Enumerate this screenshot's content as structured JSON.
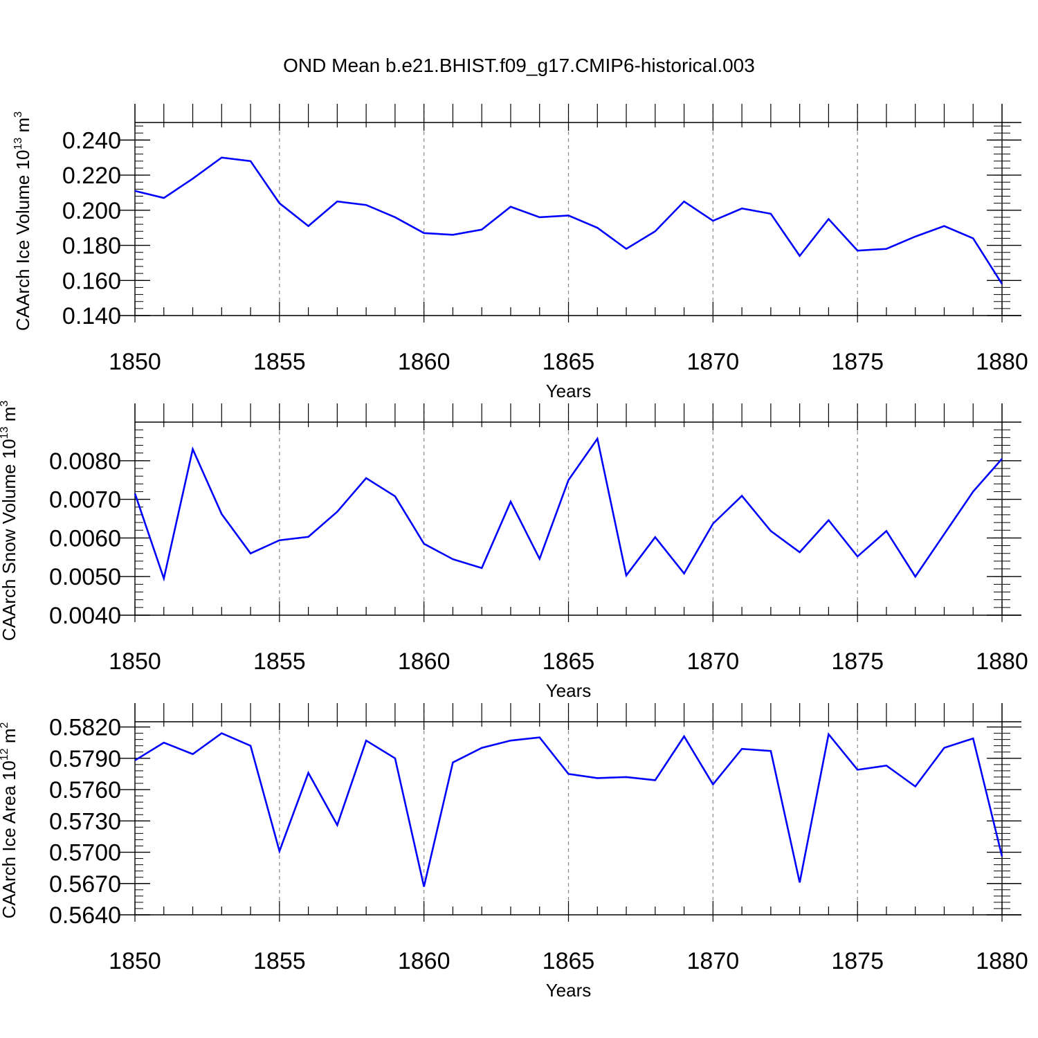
{
  "title": "OND Mean b.e21.BHIST.f09_g17.CMIP6-historical.003",
  "chart_data": [
    {
      "type": "line",
      "ylabel": {
        "prefix": "CAArch Ice Volume 10",
        "exp": "13",
        "unit": " m",
        "unit_exp": "3"
      },
      "xlabel": "Years",
      "xlim": [
        1850,
        1880
      ],
      "ylim": [
        0.14,
        0.25
      ],
      "yticks": [
        0.14,
        0.16,
        0.18,
        0.2,
        0.22,
        0.24
      ],
      "ytick_labels": [
        "0.140",
        "0.160",
        "0.180",
        "0.200",
        "0.220",
        "0.240"
      ],
      "xticks": [
        1850,
        1855,
        1860,
        1865,
        1870,
        1875,
        1880
      ],
      "xtick_labels": [
        "1850",
        "1855",
        "1860",
        "1865",
        "1870",
        "1875",
        "1880"
      ],
      "series": [
        {
          "name": "CAArch Ice Volume",
          "color": "#0000ff",
          "x": [
            1850,
            1851,
            1852,
            1853,
            1854,
            1855,
            1856,
            1857,
            1858,
            1859,
            1860,
            1861,
            1862,
            1863,
            1864,
            1865,
            1866,
            1867,
            1868,
            1869,
            1870,
            1871,
            1872,
            1873,
            1874,
            1875,
            1876,
            1877,
            1878,
            1879,
            1880
          ],
          "values": [
            0.211,
            0.207,
            0.218,
            0.23,
            0.228,
            0.204,
            0.191,
            0.205,
            0.203,
            0.196,
            0.187,
            0.186,
            0.189,
            0.202,
            0.196,
            0.197,
            0.19,
            0.178,
            0.188,
            0.205,
            0.194,
            0.201,
            0.198,
            0.174,
            0.195,
            0.177,
            0.178,
            0.185,
            0.191,
            0.184,
            0.158
          ]
        }
      ]
    },
    {
      "type": "line",
      "ylabel": {
        "prefix": "CAArch Snow Volume 10",
        "exp": "13",
        "unit": " m",
        "unit_exp": "3"
      },
      "xlabel": "Years",
      "xlim": [
        1850,
        1880
      ],
      "ylim": [
        0.004,
        0.009
      ],
      "yticks": [
        0.004,
        0.005,
        0.006,
        0.007,
        0.008
      ],
      "ytick_labels": [
        "0.0040",
        "0.0050",
        "0.0060",
        "0.0070",
        "0.0080"
      ],
      "xticks": [
        1850,
        1855,
        1860,
        1865,
        1870,
        1875,
        1880
      ],
      "xtick_labels": [
        "1850",
        "1855",
        "1860",
        "1865",
        "1870",
        "1875",
        "1880"
      ],
      "series": [
        {
          "name": "CAArch Snow Volume",
          "color": "#0000ff",
          "x": [
            1850,
            1851,
            1852,
            1853,
            1854,
            1855,
            1856,
            1857,
            1858,
            1859,
            1860,
            1861,
            1862,
            1863,
            1864,
            1865,
            1866,
            1867,
            1868,
            1869,
            1870,
            1871,
            1872,
            1873,
            1874,
            1875,
            1876,
            1877,
            1878,
            1879,
            1880
          ],
          "values": [
            0.00715,
            0.00495,
            0.0083,
            0.00662,
            0.0056,
            0.00594,
            0.00603,
            0.00668,
            0.00755,
            0.00708,
            0.00585,
            0.00545,
            0.00522,
            0.00694,
            0.00546,
            0.0075,
            0.00857,
            0.00503,
            0.00602,
            0.00508,
            0.00637,
            0.00709,
            0.00618,
            0.00563,
            0.00646,
            0.00552,
            0.00618,
            0.005,
            0.0061,
            0.0072,
            0.00805
          ]
        }
      ]
    },
    {
      "type": "line",
      "ylabel": {
        "prefix": "CAArch Ice Area 10",
        "exp": "12",
        "unit": " m",
        "unit_exp": "2"
      },
      "xlabel": "Years",
      "xlim": [
        1850,
        1880
      ],
      "ylim": [
        0.564,
        0.5825
      ],
      "yticks": [
        0.564,
        0.567,
        0.57,
        0.573,
        0.576,
        0.579,
        0.582
      ],
      "ytick_labels": [
        "0.5640",
        "0.5670",
        "0.5700",
        "0.5730",
        "0.5760",
        "0.5790",
        "0.5820"
      ],
      "xticks": [
        1850,
        1855,
        1860,
        1865,
        1870,
        1875,
        1880
      ],
      "xtick_labels": [
        "1850",
        "1855",
        "1860",
        "1865",
        "1870",
        "1875",
        "1880"
      ],
      "series": [
        {
          "name": "CAArch Ice Area",
          "color": "#0000ff",
          "x": [
            1850,
            1851,
            1852,
            1853,
            1854,
            1855,
            1856,
            1857,
            1858,
            1859,
            1860,
            1861,
            1862,
            1863,
            1864,
            1865,
            1866,
            1867,
            1868,
            1869,
            1870,
            1871,
            1872,
            1873,
            1874,
            1875,
            1876,
            1877,
            1878,
            1879,
            1880
          ],
          "values": [
            0.5788,
            0.5805,
            0.5794,
            0.5814,
            0.5802,
            0.5701,
            0.5776,
            0.5726,
            0.5807,
            0.579,
            0.5667,
            0.5786,
            0.58,
            0.5807,
            0.581,
            0.5775,
            0.5771,
            0.5772,
            0.5769,
            0.5811,
            0.5765,
            0.5799,
            0.5797,
            0.5671,
            0.5813,
            0.5779,
            0.5783,
            0.5763,
            0.58,
            0.5809,
            0.5696
          ]
        }
      ]
    }
  ]
}
